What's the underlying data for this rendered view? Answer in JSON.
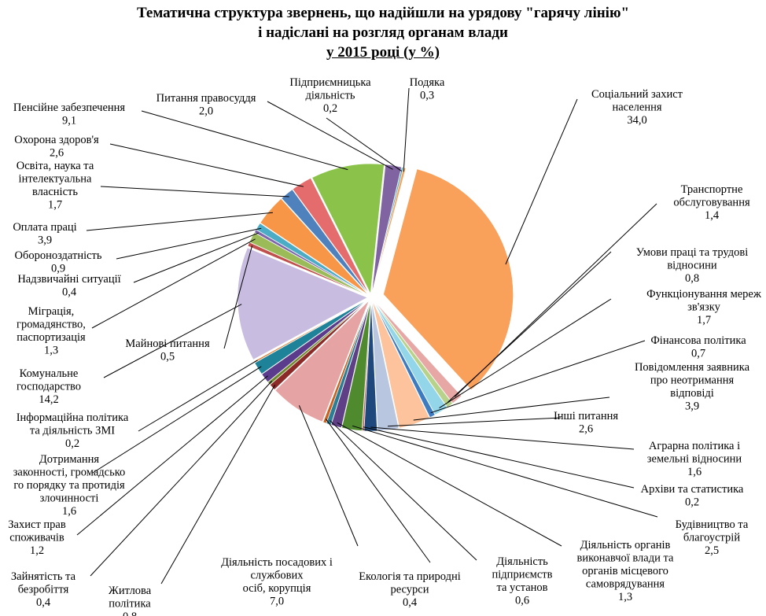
{
  "title_lines": [
    "Тематична структура звернень, що надійшли на урядову \"гарячу лінію\"",
    "і надіслані на розгляд органам влади",
    "у 2015 році (у %)"
  ],
  "chart_data": {
    "type": "pie",
    "title": "Тематична структура звернень, що надійшли на урядову \"гарячу лінію\" і надіслані на розгляд органам влади у 2015 році (у %)",
    "legend": "none",
    "slices": [
      {
        "label": "Соціальний захист населення",
        "value": 34.0,
        "value_label": "34,0",
        "color": "#F9A05A"
      },
      {
        "label": "Транспортне обслуговування",
        "value": 1.4,
        "value_label": "1,4",
        "color": "#E6A7A5"
      },
      {
        "label": "Умови праці та трудові відносини",
        "value": 0.8,
        "value_label": "0,8",
        "color": "#B7D28A"
      },
      {
        "label": "Функціонування мереж зв'язку",
        "value": 1.7,
        "value_label": "1,7",
        "color": "#93D6EA"
      },
      {
        "label": "Фінансова політика",
        "value": 0.7,
        "value_label": "0,7",
        "color": "#3C7BBF"
      },
      {
        "label": "Повідомлення заявника про неотримання відповіді",
        "value": 3.9,
        "value_label": "3,9",
        "color": "#FCC39C"
      },
      {
        "label": "Інші питання",
        "value": 2.6,
        "value_label": "2,6",
        "color": "#B8C6E0"
      },
      {
        "label": "Аграрна політика і земельні відносини",
        "value": 1.6,
        "value_label": "1,6",
        "color": "#1F497D"
      },
      {
        "label": "Архіви та статистика",
        "value": 0.2,
        "value_label": "0,2",
        "color": "#C0504D"
      },
      {
        "label": "Будівництво та благоустрій",
        "value": 2.5,
        "value_label": "2,5",
        "color": "#4F8A2E"
      },
      {
        "label": "Діяльність органів виконавчої влади та органів місцевого самоврядування",
        "value": 1.3,
        "value_label": "1,3",
        "color": "#5F3F86"
      },
      {
        "label": "Діяльність підприємств та установ",
        "value": 0.6,
        "value_label": "0,6",
        "color": "#2B7E93"
      },
      {
        "label": "Екологія та природні ресурси",
        "value": 0.4,
        "value_label": "0,4",
        "color": "#C9601E"
      },
      {
        "label": "Діяльність посадових і службових осіб, корупція",
        "value": 7.0,
        "value_label": "7,0",
        "color": "#E6A3A3"
      },
      {
        "label": "Житлова політика",
        "value": 0.8,
        "value_label": "0,8",
        "color": "#8B2A27"
      },
      {
        "label": "Зайнятість та безробіття",
        "value": 0.4,
        "value_label": "0,4",
        "color": "#6E8A2C"
      },
      {
        "label": "Захист прав споживачів",
        "value": 1.2,
        "value_label": "1,2",
        "color": "#5B3C8C"
      },
      {
        "label": "Дотримання законності, громадського порядку та протидія злочинності",
        "value": 1.6,
        "value_label": "1,6",
        "color": "#1E8299"
      },
      {
        "label": "Інформаційна політика та діяльність ЗМІ",
        "value": 0.2,
        "value_label": "0,2",
        "color": "#D97A2E"
      },
      {
        "label": "Комунальне господарство",
        "value": 14.2,
        "value_label": "14,2",
        "color": "#C8BDE0"
      },
      {
        "label": "Майнові питання",
        "value": 0.5,
        "value_label": "0,5",
        "color": "#C0504D"
      },
      {
        "label": "Міграція, громадянство, паспортизація",
        "value": 1.3,
        "value_label": "1,3",
        "color": "#9BBB59"
      },
      {
        "label": "Надзвичайні ситуації",
        "value": 0.4,
        "value_label": "0,4",
        "color": "#7E66AA"
      },
      {
        "label": "Обороноздатність",
        "value": 0.9,
        "value_label": "0,9",
        "color": "#4BACC6"
      },
      {
        "label": "Оплата праці",
        "value": 3.9,
        "value_label": "3,9",
        "color": "#F79646"
      },
      {
        "label": "Освіта, наука та інтелектуальна власність",
        "value": 1.7,
        "value_label": "1,7",
        "color": "#4F81BD"
      },
      {
        "label": "Охорона здоров'я",
        "value": 2.6,
        "value_label": "2,6",
        "color": "#E46C6C"
      },
      {
        "label": "Пенсійне забезпечення",
        "value": 9.1,
        "value_label": "9,1",
        "color": "#8BC34A"
      },
      {
        "label": "Питання правосуддя",
        "value": 2.0,
        "value_label": "2,0",
        "color": "#8064A2"
      },
      {
        "label": "Підприємницька діяльність",
        "value": 0.2,
        "value_label": "0,2",
        "color": "#4BACC6"
      },
      {
        "label": "Подяка",
        "value": 0.3,
        "value_label": "0,3",
        "color": "#F4A259"
      }
    ],
    "labels": [
      {
        "lines": [
          "Соціальний захист",
          "населення",
          "34,0"
        ]
      },
      {
        "lines": [
          "Транспортне",
          "обслуговування",
          "1,4"
        ]
      },
      {
        "lines": [
          "Умови праці та трудові",
          "відносини",
          "0,8"
        ]
      },
      {
        "lines": [
          "Функціонування мереж",
          "зв'язку",
          "1,7"
        ]
      },
      {
        "lines": [
          "Фінансова політика",
          "0,7"
        ]
      },
      {
        "lines": [
          "Повідомлення заявника",
          "про неотримання",
          "відповіді",
          "3,9"
        ]
      },
      {
        "lines": [
          "Інші питання",
          "2,6"
        ]
      },
      {
        "lines": [
          "Аграрна політика і",
          "земельні відносини",
          "1,6"
        ]
      },
      {
        "lines": [
          "Архіви та статистика",
          "0,2"
        ]
      },
      {
        "lines": [
          "Будівництво та",
          "благоустрій",
          "2,5"
        ]
      },
      {
        "lines": [
          "Діяльність органів",
          "виконавчої влади та",
          "органів місцевого",
          "самоврядування",
          "1,3"
        ]
      },
      {
        "lines": [
          "Діяльність",
          "підприємств",
          "та установ",
          "0,6"
        ]
      },
      {
        "lines": [
          "Екологія та природні",
          "ресурси",
          "0,4"
        ]
      },
      {
        "lines": [
          "Діяльність посадових і",
          "службових",
          "осіб, корупція",
          "7,0"
        ]
      },
      {
        "lines": [
          "Житлова",
          "політика",
          "0,8"
        ]
      },
      {
        "lines": [
          "Зайнятість та",
          "безробіття",
          "0,4"
        ]
      },
      {
        "lines": [
          "Захист прав",
          "споживачів",
          "1,2"
        ]
      },
      {
        "lines": [
          "Дотримання",
          "законності, громадсько",
          "го порядку та протидія",
          "злочинності",
          "1,6"
        ]
      },
      {
        "lines": [
          "Інформаційна політика",
          "та діяльність ЗМІ",
          "0,2"
        ]
      },
      {
        "lines": [
          "Комунальне",
          "господарство",
          "14,2"
        ]
      },
      {
        "lines": [
          "Майнові питання",
          "0,5"
        ]
      },
      {
        "lines": [
          "Міграція,",
          "громадянство,",
          "паспортизація",
          "1,3"
        ]
      },
      {
        "lines": [
          "Надзвичайні ситуації",
          "0,4"
        ]
      },
      {
        "lines": [
          "Обороноздатність",
          "0,9"
        ]
      },
      {
        "lines": [
          "Оплата праці",
          "3,9"
        ]
      },
      {
        "lines": [
          "Освіта, наука та",
          "інтелектуальна",
          "власність",
          "1,7"
        ]
      },
      {
        "lines": [
          "Охорона здоров'я",
          "2,6"
        ]
      },
      {
        "lines": [
          "Пенсійне забезпечення",
          "9,1"
        ]
      },
      {
        "lines": [
          "Питання правосуддя",
          "2,0"
        ]
      },
      {
        "lines": [
          "Підприємницька",
          "діяльність",
          "0,2"
        ]
      },
      {
        "lines": [
          "Подяка",
          "0,3"
        ]
      }
    ]
  }
}
